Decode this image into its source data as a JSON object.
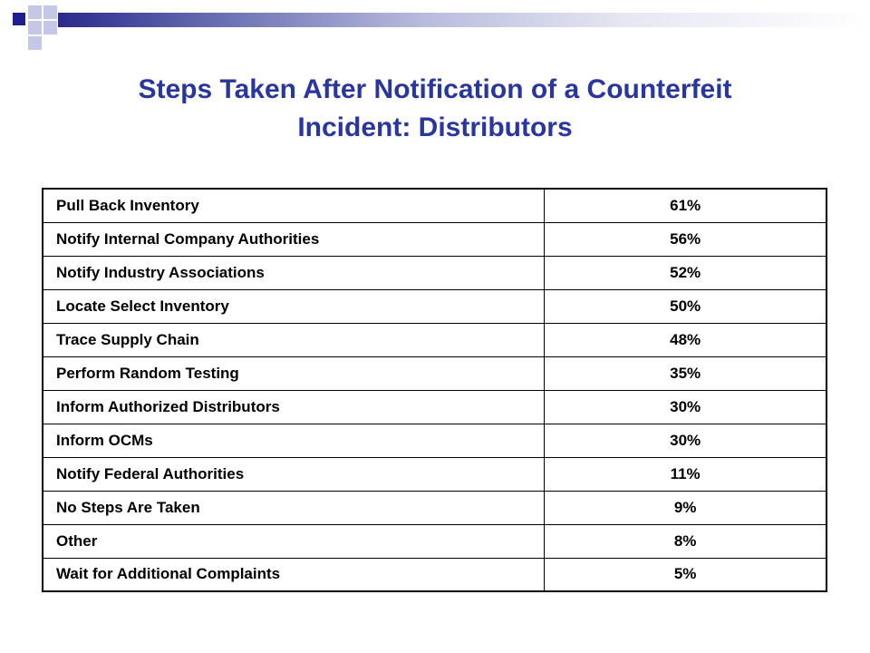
{
  "slide": {
    "title_line1": "Steps Taken After Notification of a Counterfeit",
    "title_line2": "Incident: Distributors"
  },
  "table": {
    "rows": [
      {
        "label": "Pull Back Inventory",
        "value": "61%"
      },
      {
        "label": "Notify Internal Company Authorities",
        "value": "56%"
      },
      {
        "label": "Notify Industry Associations",
        "value": "52%"
      },
      {
        "label": "Locate Select Inventory",
        "value": "50%"
      },
      {
        "label": "Trace Supply Chain",
        "value": "48%"
      },
      {
        "label": "Perform Random Testing",
        "value": "35%"
      },
      {
        "label": "Inform Authorized Distributors",
        "value": "30%"
      },
      {
        "label": "Inform OCMs",
        "value": "30%"
      },
      {
        "label": "Notify Federal Authorities",
        "value": "11%"
      },
      {
        "label": "No Steps Are Taken",
        "value": "9%"
      },
      {
        "label": "Other",
        "value": "8%"
      },
      {
        "label": "Wait for Additional Complaints",
        "value": "5%"
      }
    ]
  },
  "colors": {
    "title": "#2a36a0",
    "accent_dark": "#1f1f8f",
    "accent_light": "#c4c8e6"
  }
}
